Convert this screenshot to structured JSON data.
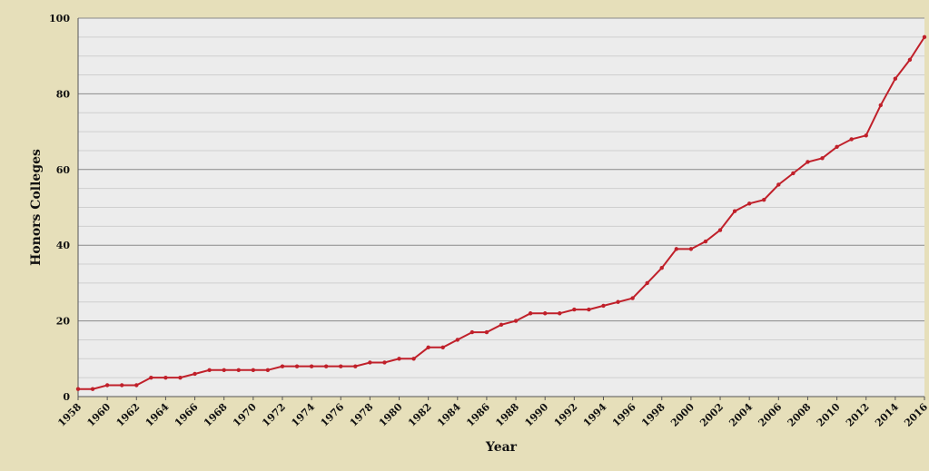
{
  "chart_data": {
    "type": "line",
    "title": "",
    "xlabel": "Year",
    "ylabel": "Honors Colleges",
    "xlim": [
      1958,
      2016
    ],
    "ylim": [
      0,
      100
    ],
    "y_ticks": [
      0,
      20,
      40,
      60,
      80,
      100
    ],
    "x_tick_step": 2,
    "grid": true,
    "legend": "none",
    "colors": {
      "line": "#c0202a",
      "plot_bg": "#ececec",
      "frame_bg": "#e6dfba",
      "major_grid": "#8a8a8a",
      "minor_grid": "#cfcfcf"
    },
    "series": [
      {
        "x": [
          1958,
          1959,
          1960,
          1961,
          1962,
          1963,
          1964,
          1965,
          1966,
          1967,
          1968,
          1969,
          1970,
          1971,
          1972,
          1973,
          1974,
          1975,
          1976,
          1977,
          1978,
          1979,
          1980,
          1981,
          1982,
          1983,
          1984,
          1985,
          1986,
          1987,
          1988,
          1989,
          1990,
          1991,
          1992,
          1993,
          1994,
          1995,
          1996,
          1997,
          1998,
          1999,
          2000,
          2001,
          2002,
          2003,
          2004,
          2005,
          2006,
          2007,
          2008,
          2009,
          2010,
          2011,
          2012,
          2013,
          2014,
          2015,
          2016
        ],
        "values": [
          2,
          2,
          3,
          3,
          3,
          5,
          5,
          5,
          6,
          7,
          7,
          7,
          7,
          7,
          8,
          8,
          8,
          8,
          8,
          8,
          9,
          9,
          10,
          10,
          13,
          13,
          15,
          17,
          17,
          19,
          20,
          22,
          22,
          22,
          23,
          23,
          24,
          25,
          26,
          30,
          34,
          39,
          39,
          41,
          44,
          49,
          51,
          52,
          56,
          59,
          62,
          63,
          66,
          68,
          69,
          77,
          84,
          89,
          95
        ]
      }
    ]
  }
}
